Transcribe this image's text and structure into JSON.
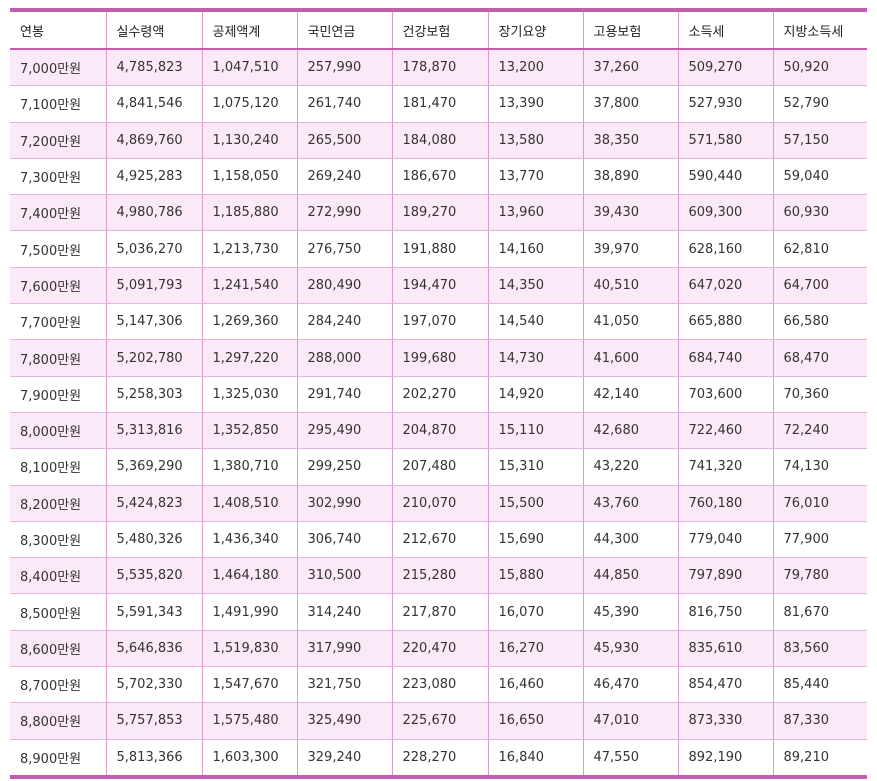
{
  "table": {
    "headers": [
      "연봉",
      "실수령액",
      "공제액계",
      "국민연금",
      "건강보험",
      "장기요양",
      "고용보험",
      "소득세",
      "지방소득세"
    ],
    "rows": [
      [
        "7,000만원",
        "4,785,823",
        "1,047,510",
        "257,990",
        "178,870",
        "13,200",
        "37,260",
        "509,270",
        "50,920"
      ],
      [
        "7,100만원",
        "4,841,546",
        "1,075,120",
        "261,740",
        "181,470",
        "13,390",
        "37,800",
        "527,930",
        "52,790"
      ],
      [
        "7,200만원",
        "4,869,760",
        "1,130,240",
        "265,500",
        "184,080",
        "13,580",
        "38,350",
        "571,580",
        "57,150"
      ],
      [
        "7,300만원",
        "4,925,283",
        "1,158,050",
        "269,240",
        "186,670",
        "13,770",
        "38,890",
        "590,440",
        "59,040"
      ],
      [
        "7,400만원",
        "4,980,786",
        "1,185,880",
        "272,990",
        "189,270",
        "13,960",
        "39,430",
        "609,300",
        "60,930"
      ],
      [
        "7,500만원",
        "5,036,270",
        "1,213,730",
        "276,750",
        "191,880",
        "14,160",
        "39,970",
        "628,160",
        "62,810"
      ],
      [
        "7,600만원",
        "5,091,793",
        "1,241,540",
        "280,490",
        "194,470",
        "14,350",
        "40,510",
        "647,020",
        "64,700"
      ],
      [
        "7,700만원",
        "5,147,306",
        "1,269,360",
        "284,240",
        "197,070",
        "14,540",
        "41,050",
        "665,880",
        "66,580"
      ],
      [
        "7,800만원",
        "5,202,780",
        "1,297,220",
        "288,000",
        "199,680",
        "14,730",
        "41,600",
        "684,740",
        "68,470"
      ],
      [
        "7,900만원",
        "5,258,303",
        "1,325,030",
        "291,740",
        "202,270",
        "14,920",
        "42,140",
        "703,600",
        "70,360"
      ],
      [
        "8,000만원",
        "5,313,816",
        "1,352,850",
        "295,490",
        "204,870",
        "15,110",
        "42,680",
        "722,460",
        "72,240"
      ],
      [
        "8,100만원",
        "5,369,290",
        "1,380,710",
        "299,250",
        "207,480",
        "15,310",
        "43,220",
        "741,320",
        "74,130"
      ],
      [
        "8,200만원",
        "5,424,823",
        "1,408,510",
        "302,990",
        "210,070",
        "15,500",
        "43,760",
        "760,180",
        "76,010"
      ],
      [
        "8,300만원",
        "5,480,326",
        "1,436,340",
        "306,740",
        "212,670",
        "15,690",
        "44,300",
        "779,040",
        "77,900"
      ],
      [
        "8,400만원",
        "5,535,820",
        "1,464,180",
        "310,500",
        "215,280",
        "15,880",
        "44,850",
        "797,890",
        "79,780"
      ],
      [
        "8,500만원",
        "5,591,343",
        "1,491,990",
        "314,240",
        "217,870",
        "16,070",
        "45,390",
        "816,750",
        "81,670"
      ],
      [
        "8,600만원",
        "5,646,836",
        "1,519,830",
        "317,990",
        "220,470",
        "16,270",
        "45,930",
        "835,610",
        "83,560"
      ],
      [
        "8,700만원",
        "5,702,330",
        "1,547,670",
        "321,750",
        "223,080",
        "16,460",
        "46,470",
        "854,470",
        "85,440"
      ],
      [
        "8,800만원",
        "5,757,853",
        "1,575,480",
        "325,490",
        "225,670",
        "16,650",
        "47,010",
        "873,330",
        "87,330"
      ],
      [
        "8,900만원",
        "5,813,366",
        "1,603,300",
        "329,240",
        "228,270",
        "16,840",
        "47,550",
        "892,190",
        "89,210"
      ]
    ]
  },
  "colors": {
    "accent": "#c25db0",
    "row_stripe": "#fce9f7",
    "row_plain": "#ffffff"
  }
}
